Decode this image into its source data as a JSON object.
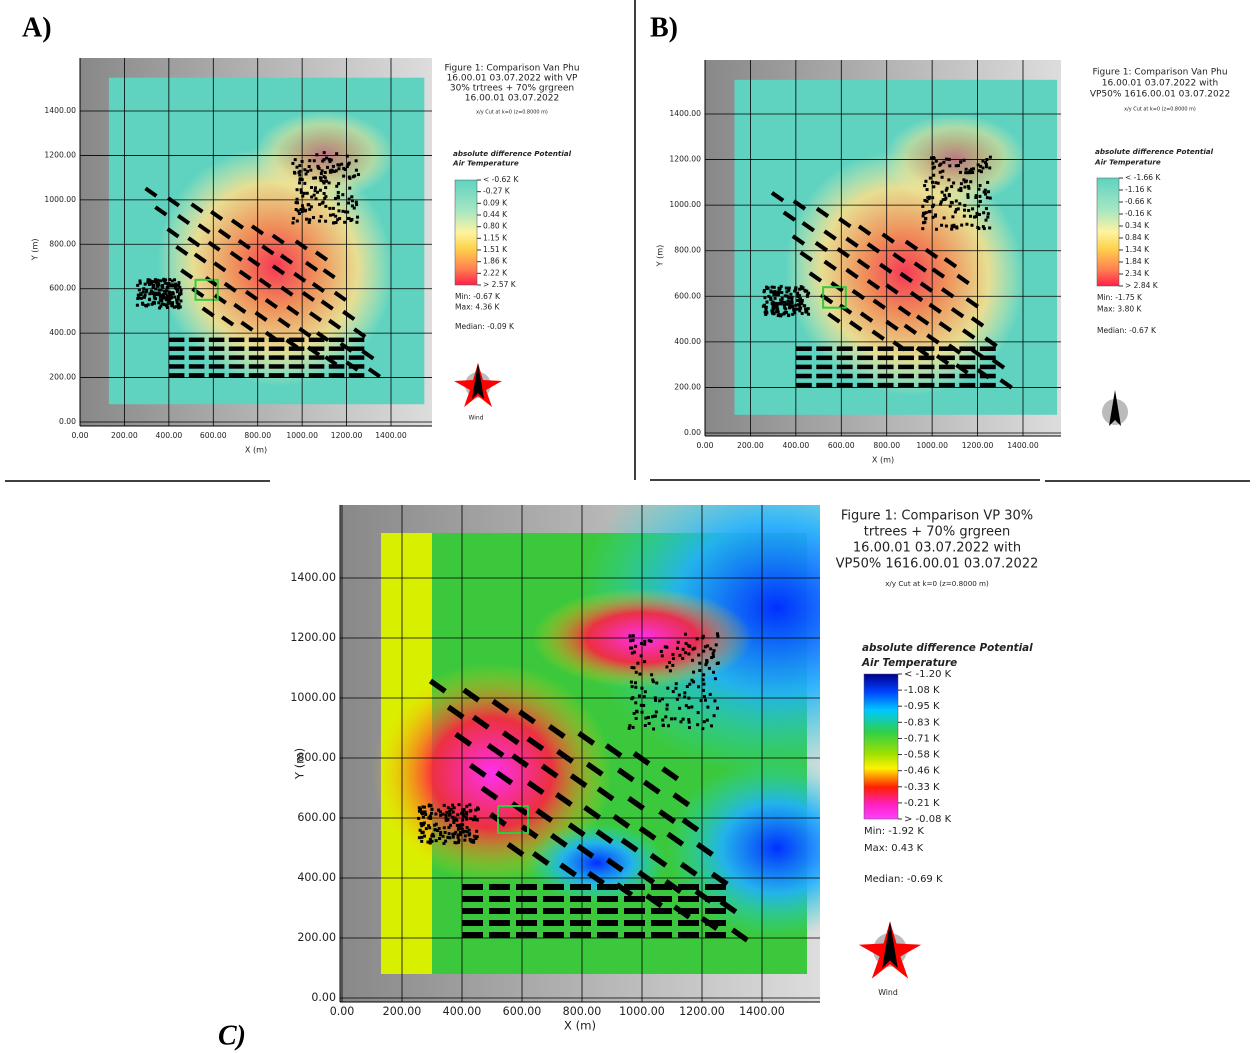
{
  "panels": [
    {
      "label": "A)",
      "title": [
        "Figure 1: Comparison Van Phu",
        "16.00.01 03.07.2022 with VP",
        "30% trtrees + 70% grgreen",
        "16.00.01 03.07.2022"
      ],
      "cut": "x/y Cut at k=0 (z=0.8000 m)",
      "legend_title": [
        "absolute difference Potential",
        "Air Temperature"
      ],
      "legend_labels": [
        "< -0.62 K",
        "-0.27 K",
        "0.09 K",
        "0.44 K",
        "0.80 K",
        "1.15 K",
        "1.51 K",
        "1.86 K",
        "2.22 K",
        "> 2.57 K"
      ],
      "stats": [
        "Min: -0.67 K",
        "Max: 4.36 K",
        "Median: -0.09 K"
      ],
      "x_ticks": [
        "0.00",
        "200.00",
        "400.00",
        "600.00",
        "800.00",
        "1000.00",
        "1200.00",
        "1400.00"
      ],
      "y_ticks": [
        "0.00",
        "200.00",
        "400.00",
        "600.00",
        "800.00",
        "1000.00",
        "1200.00",
        "1400.00"
      ],
      "x_label": "X (m)",
      "y_label": "Y (m)",
      "wind": "Wind"
    },
    {
      "label": "B)",
      "title": [
        "Figure 1: Comparison Van Phu",
        "16.00.01 03.07.2022 with",
        "VP50% 1616.00.01 03.07.2022"
      ],
      "cut": "x/y Cut at k=0 (z=0.8000 m)",
      "legend_title": [
        "absolute difference Potential",
        "Air Temperature"
      ],
      "legend_labels": [
        "< -1.66 K",
        "-1.16 K",
        "-0.66 K",
        "-0.16 K",
        "0.34 K",
        "0.84 K",
        "1.34 K",
        "1.84 K",
        "2.34 K",
        "> 2.84 K"
      ],
      "stats": [
        "Min: -1.75 K",
        "Max: 3.80 K",
        "Median: -0.67 K"
      ],
      "x_ticks": [
        "0.00",
        "200.00",
        "400.00",
        "600.00",
        "800.00",
        "1000.00",
        "1200.00",
        "1400.00"
      ],
      "y_ticks": [
        "0.00",
        "200.00",
        "400.00",
        "600.00",
        "800.00",
        "1000.00",
        "1200.00",
        "1400.00"
      ],
      "x_label": "X (m)",
      "y_label": "Y (m)"
    },
    {
      "label": "C)",
      "title": [
        "Figure 1: Comparison VP 30%",
        "trtrees + 70% grgreen",
        "16.00.01 03.07.2022 with",
        "VP50% 1616.00.01 03.07.2022"
      ],
      "cut": "x/y Cut at k=0 (z=0.8000 m)",
      "legend_title": [
        "absolute difference Potential",
        "Air Temperature"
      ],
      "legend_labels": [
        "< -1.20 K",
        "-1.08 K",
        "-0.95 K",
        "-0.83 K",
        "-0.71 K",
        "-0.58 K",
        "-0.46 K",
        "-0.33 K",
        "-0.21 K",
        "> -0.08 K"
      ],
      "stats": [
        "Min: -1.92 K",
        "Max: 0.43 K",
        "Median: -0.69 K"
      ],
      "x_ticks": [
        "0.00",
        "200.00",
        "400.00",
        "600.00",
        "800.00",
        "1000.00",
        "1200.00",
        "1400.00"
      ],
      "y_ticks": [
        "0.00",
        "200.00",
        "400.00",
        "600.00",
        "800.00",
        "1000.00",
        "1200.00",
        "1400.00"
      ],
      "x_label": "X (m)",
      "y_label": "Y (m)",
      "wind": "Wind"
    }
  ]
}
